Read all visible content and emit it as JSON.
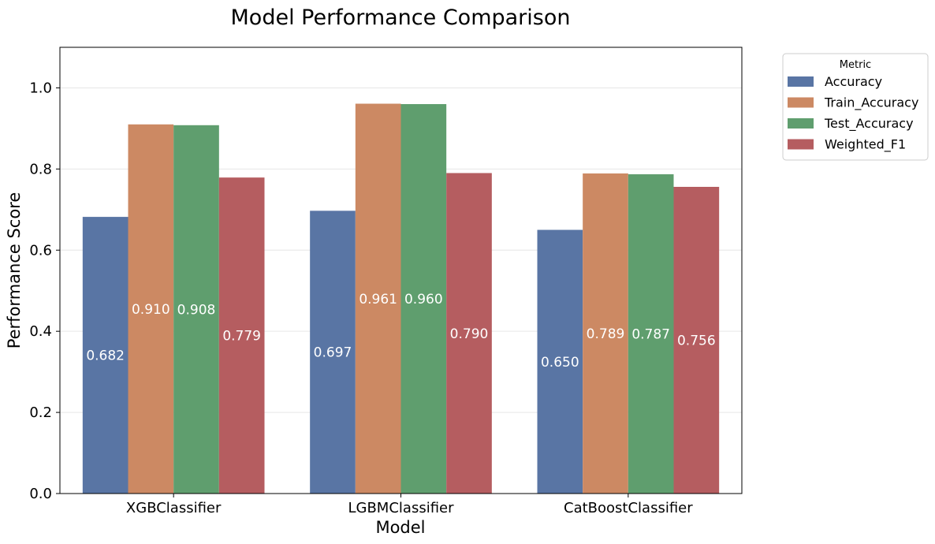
{
  "chart_data": {
    "type": "bar",
    "title": "Model Performance Comparison",
    "xlabel": "Model",
    "ylabel": "Performance Score",
    "categories": [
      "XGBClassifier",
      "LGBMClassifier",
      "CatBoostClassifier"
    ],
    "series": [
      {
        "name": "Accuracy",
        "color": "#5975a4",
        "values": [
          0.682,
          0.697,
          0.65
        ],
        "labels": [
          "0.682",
          "0.697",
          "0.650"
        ]
      },
      {
        "name": "Train_Accuracy",
        "color": "#cc8963",
        "values": [
          0.91,
          0.961,
          0.789
        ],
        "labels": [
          "0.910",
          "0.961",
          "0.789"
        ]
      },
      {
        "name": "Test_Accuracy",
        "color": "#5f9e6e",
        "values": [
          0.908,
          0.96,
          0.787
        ],
        "labels": [
          "0.908",
          "0.960",
          "0.787"
        ]
      },
      {
        "name": "Weighted_F1",
        "color": "#b55d60",
        "values": [
          0.779,
          0.79,
          0.756
        ],
        "labels": [
          "0.779",
          "0.790",
          "0.756"
        ]
      }
    ],
    "ylim": [
      0,
      1.1
    ],
    "yticks": [
      0.0,
      0.2,
      0.4,
      0.6,
      0.8,
      1.0
    ],
    "ytick_labels": [
      "0.0",
      "0.2",
      "0.4",
      "0.6",
      "0.8",
      "1.0"
    ],
    "grid": "horizontal",
    "legend": {
      "title": "Metric",
      "placement": "outside-top-right"
    }
  }
}
